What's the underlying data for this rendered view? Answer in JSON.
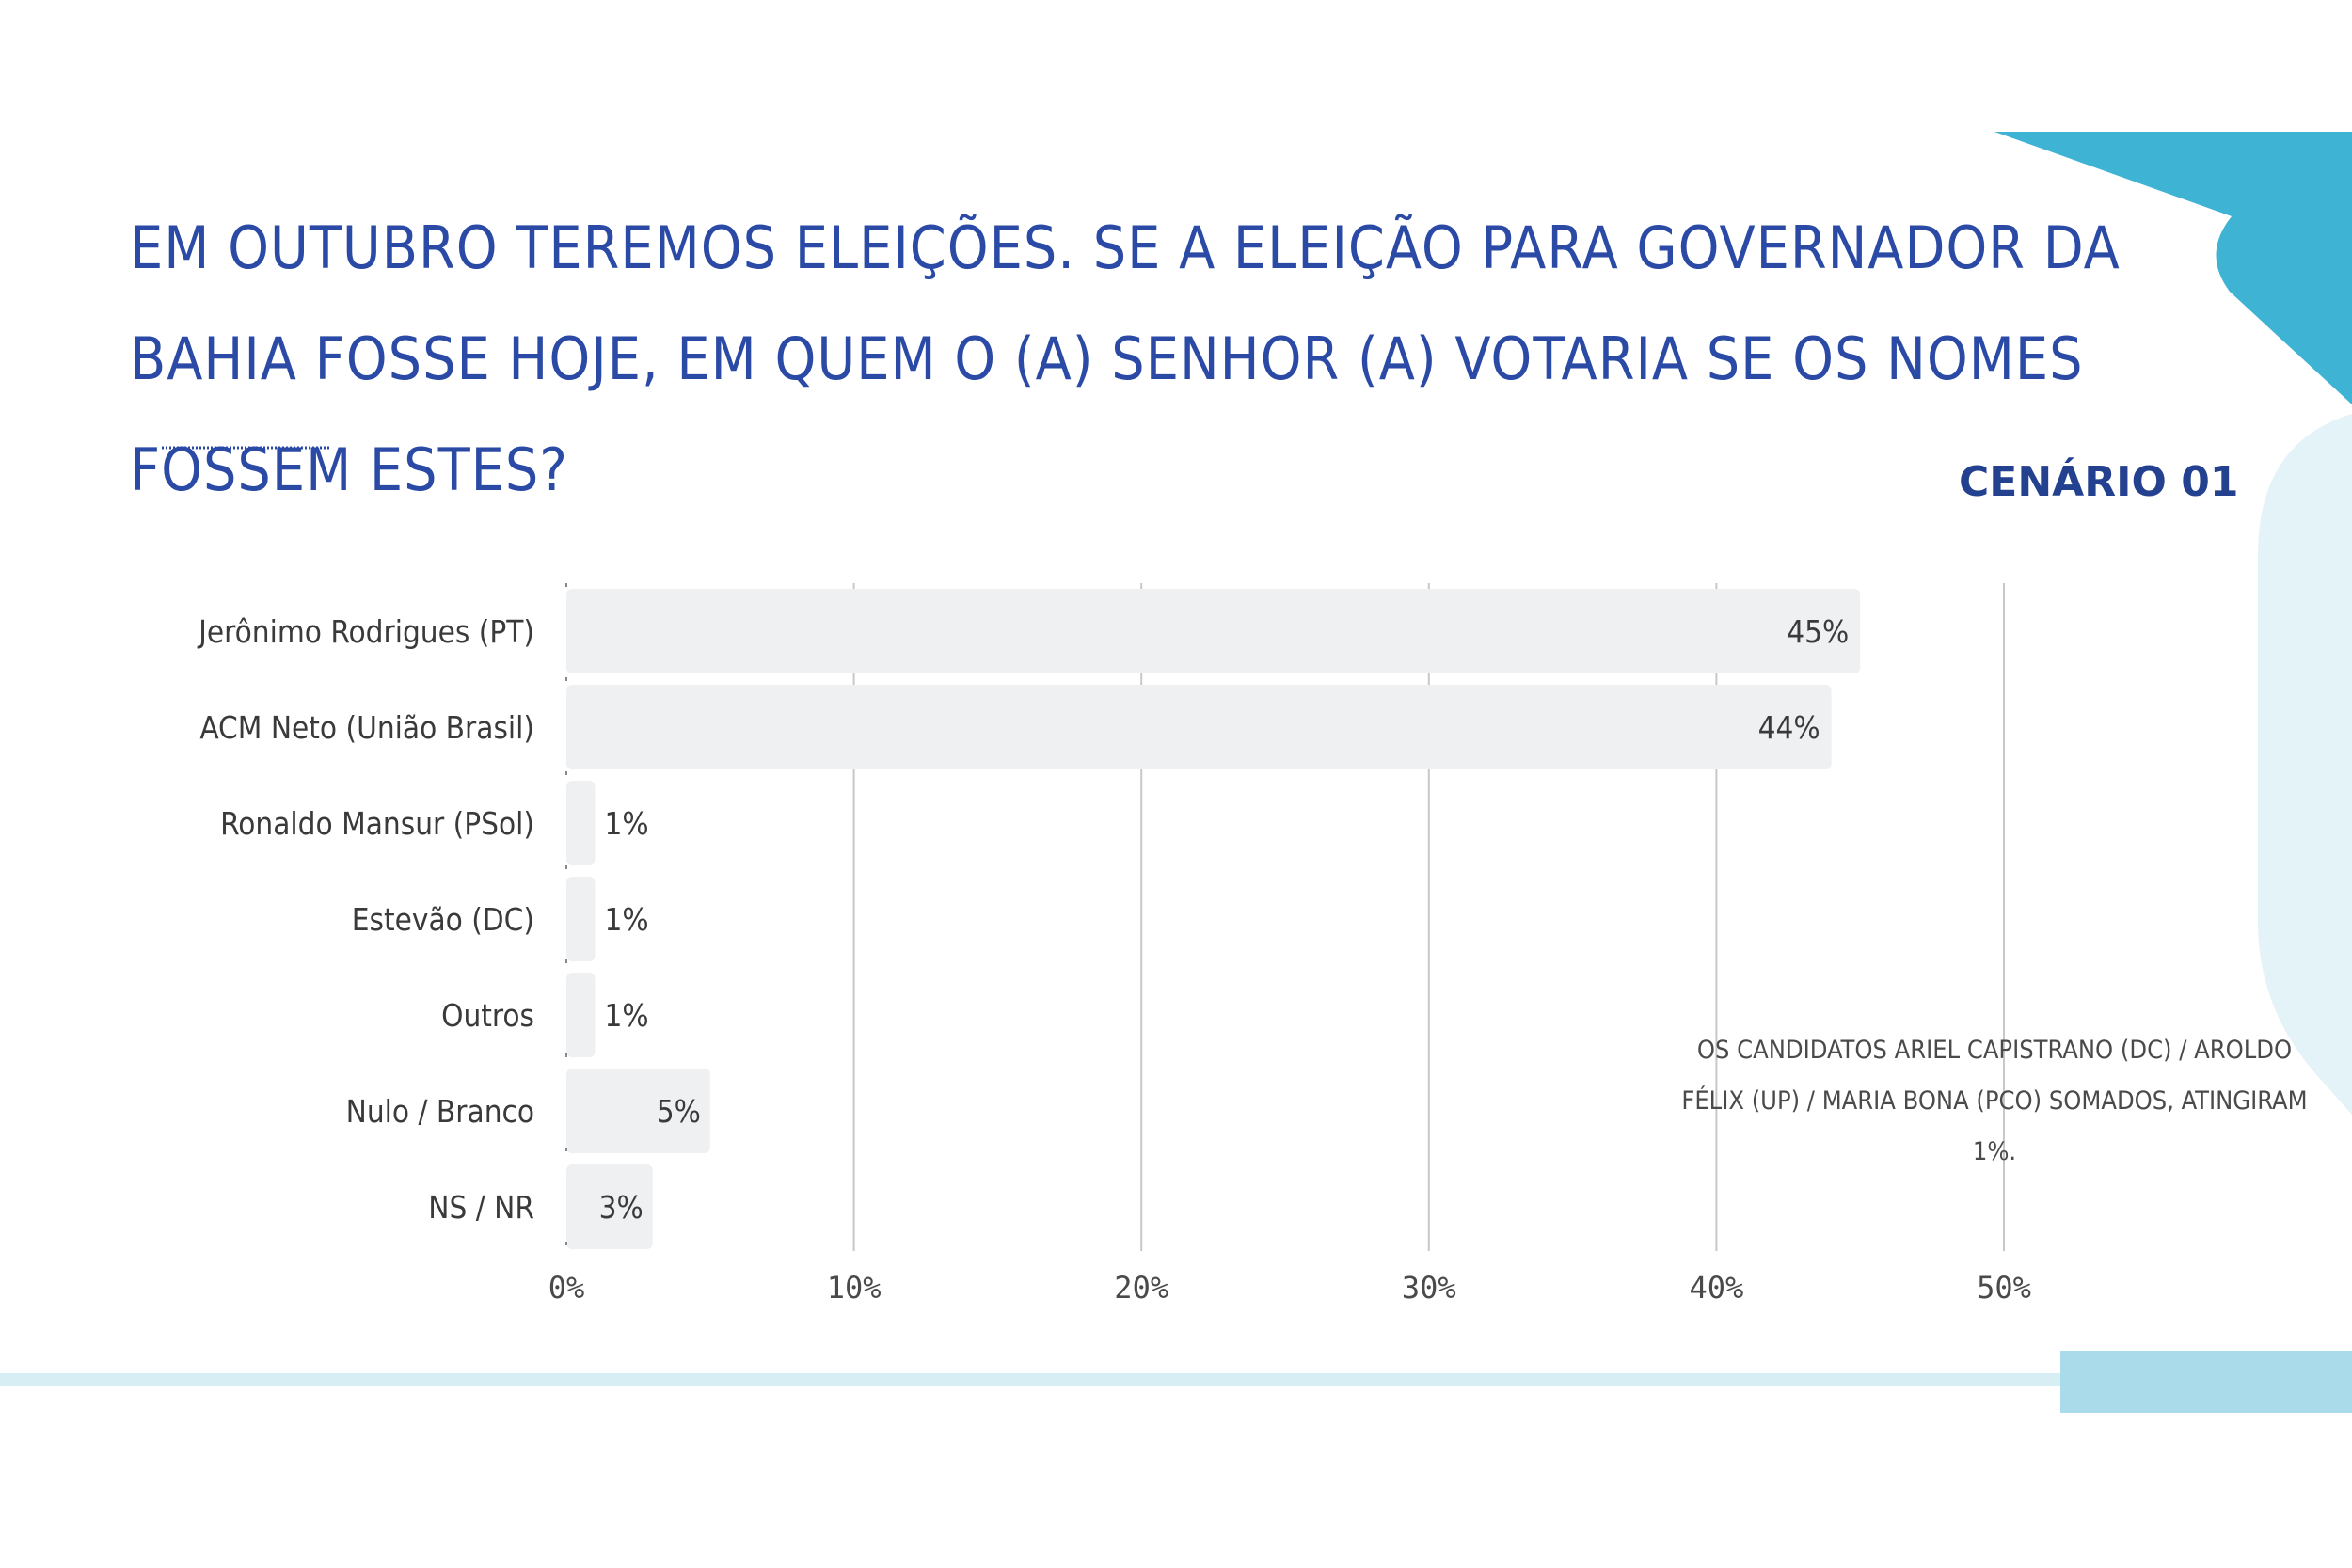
{
  "title": "EM OUTUBRO TEREMOS ELEIÇÕES. SE A ELEIÇÃO PARA GOVERNADOR DA BAHIA FOSSE HOJE, EM QUEM O (A) SENHOR (A) VOTARIA SE OS NOMES FOSSEM ESTES?",
  "scenario_label": "CENÁRIO 01",
  "note": "OS CANDIDATOS ARIEL CAPISTRANO (DC) / AROLDO FÉLIX (UP) / MARIA BONA (PCO) SOMADOS, ATINGIRAM 1%.",
  "colors": {
    "title": "#2a4aa6",
    "bar": "#eef0f1",
    "grid": "#c8c8c8",
    "accent_dark": "#3fb3d3",
    "accent_light": "#e3f3f8"
  },
  "chart_data": {
    "type": "bar",
    "orientation": "horizontal",
    "categories": [
      "Jerônimo Rodrigues (PT)",
      "ACM Neto (União Brasil)",
      "Ronaldo Mansur (PSol)",
      "Estevão (DC)",
      "Outros",
      "Nulo / Branco",
      "NS / NR"
    ],
    "values": [
      45,
      44,
      1,
      1,
      1,
      5,
      3
    ],
    "value_labels": [
      "45%",
      "44%",
      "1%",
      "1%",
      "1%",
      "5%",
      "3%"
    ],
    "x_ticks": [
      0,
      10,
      20,
      30,
      40,
      50
    ],
    "x_tick_labels": [
      "0%",
      "10%",
      "20%",
      "30%",
      "40%",
      "50%"
    ],
    "xlim": [
      0,
      50
    ],
    "grid": true,
    "legend": "none"
  }
}
